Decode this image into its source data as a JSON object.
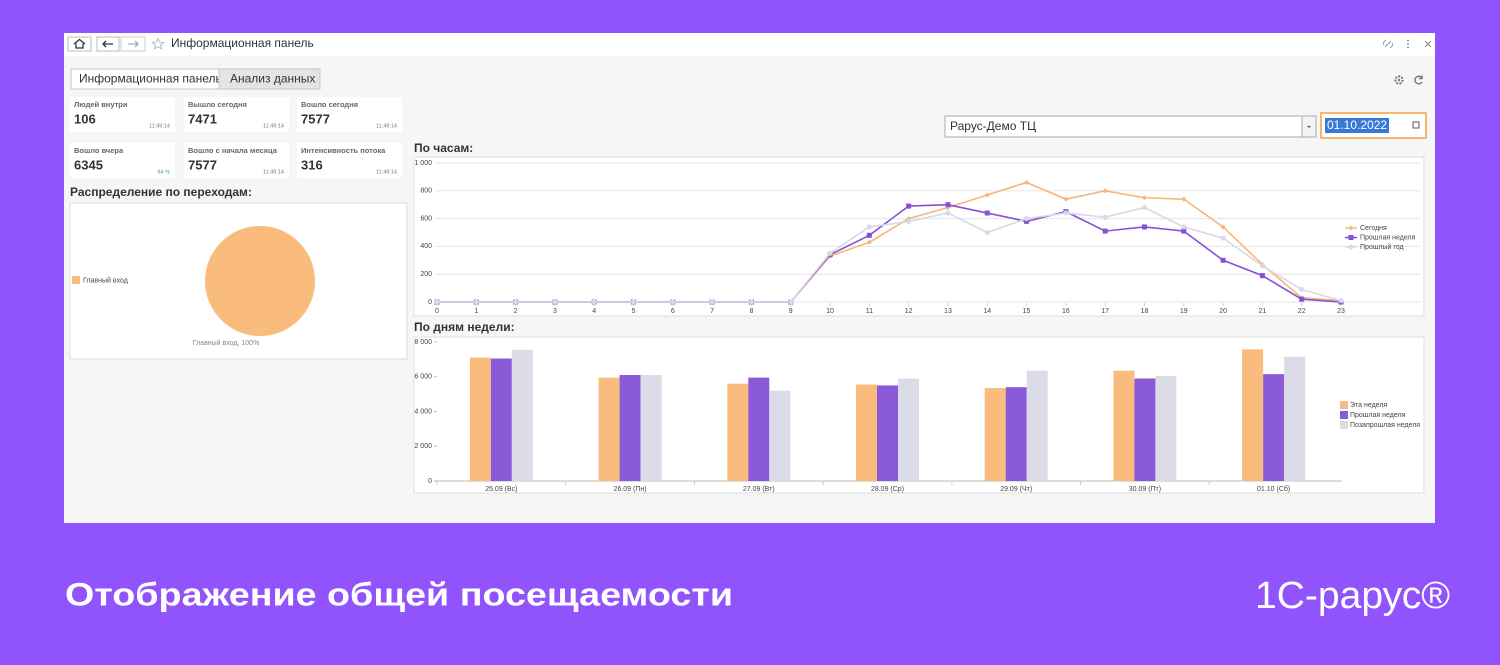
{
  "window": {
    "title": "Информационная панель"
  },
  "tabs": [
    "Информационная панель",
    "Анализ данных"
  ],
  "kpis": [
    {
      "label": "Людей внутри",
      "value": 106,
      "time": "11:49:14"
    },
    {
      "label": "Вышло сегодня",
      "value": 7471,
      "time": "11:49:14"
    },
    {
      "label": "Вошло сегодня",
      "value": 7577,
      "time": "11:49:14"
    },
    {
      "label": "Вошло вчера",
      "value": 6345,
      "note": "84 %"
    },
    {
      "label": "Вошло с начала месяца",
      "value": 7577,
      "time": "11:49:14"
    },
    {
      "label": "Интенсивность потока",
      "value": 316,
      "time": "11:49:14"
    }
  ],
  "filters": {
    "location": "Рарус-Демо ТЦ",
    "date": "01.10.2022"
  },
  "chart_data": [
    {
      "type": "pie",
      "title": "Распределение по переходам:",
      "categories": [
        "Главный вход"
      ],
      "values": [
        100
      ],
      "value_labels": [
        "Главный вход, 100%"
      ],
      "colors": [
        "#f9bc7d"
      ],
      "legend": "left"
    },
    {
      "type": "line",
      "title": "По часам:",
      "x": [
        0,
        1,
        2,
        3,
        4,
        5,
        6,
        7,
        8,
        9,
        10,
        11,
        12,
        13,
        14,
        15,
        16,
        17,
        18,
        19,
        20,
        21,
        22,
        23
      ],
      "xlim": [
        0,
        23
      ],
      "xticks": [
        0,
        1,
        2,
        3,
        4,
        5,
        6,
        7,
        8,
        9,
        10,
        11,
        12,
        13,
        14,
        15,
        16,
        17,
        18,
        19,
        20,
        21,
        22,
        23
      ],
      "ylim": [
        0,
        1000
      ],
      "yticks": [
        0,
        200,
        400,
        600,
        800,
        {
          "value": 1000,
          "label": "1 000"
        }
      ],
      "grid": true,
      "legend": "right",
      "series": [
        {
          "name": "Сегодня",
          "color": "#f7b57a",
          "marker": "diamond",
          "values": [
            0,
            0,
            0,
            0,
            0,
            0,
            0,
            0,
            0,
            0,
            330,
            430,
            600,
            680,
            770,
            860,
            740,
            800,
            750,
            740,
            540,
            270,
            30,
            10
          ]
        },
        {
          "name": "Прошлая неделя",
          "color": "#8452d4",
          "marker": "square",
          "values": [
            0,
            0,
            0,
            0,
            0,
            0,
            0,
            0,
            0,
            0,
            340,
            480,
            690,
            700,
            640,
            580,
            650,
            510,
            540,
            510,
            300,
            190,
            20,
            0
          ]
        },
        {
          "name": "Прошлый год",
          "color": "#d9d8e6",
          "marker": "circle",
          "values": [
            0,
            0,
            0,
            0,
            0,
            0,
            0,
            0,
            0,
            0,
            350,
            540,
            580,
            640,
            500,
            600,
            640,
            610,
            680,
            540,
            460,
            260,
            90,
            10
          ]
        }
      ]
    },
    {
      "type": "bar",
      "title": "По дням недели:",
      "categories": [
        "25.09 (Вс)",
        "26.09 (Пн)",
        "27.09 (Вт)",
        "28.09 (Ср)",
        "29.09 (Чт)",
        "30.09 (Пт)",
        "01.10 (Сб)"
      ],
      "ylim": [
        0,
        8000
      ],
      "yticks": [
        0,
        {
          "value": 2000,
          "label": "2 000"
        },
        {
          "value": 4000,
          "label": "4 000"
        },
        {
          "value": 6000,
          "label": "6 000"
        },
        {
          "value": 8000,
          "label": "8 000"
        }
      ],
      "grid": false,
      "legend": "right",
      "series": [
        {
          "name": "Эта неделя",
          "color": "#f9bc7d",
          "values": [
            7100,
            5950,
            5600,
            5550,
            5350,
            6345,
            7577
          ]
        },
        {
          "name": "Прошлая неделя",
          "color": "#8b5ad6",
          "values": [
            7050,
            6100,
            5950,
            5500,
            5400,
            5900,
            6150
          ]
        },
        {
          "name": "Позапрошлая неделя",
          "color": "#dcdbe8",
          "values": [
            7550,
            6100,
            5200,
            5900,
            6350,
            6050,
            7150
          ]
        }
      ]
    }
  ],
  "caption": "Отображение общей посещаемости",
  "logo": "1С-рарус®"
}
